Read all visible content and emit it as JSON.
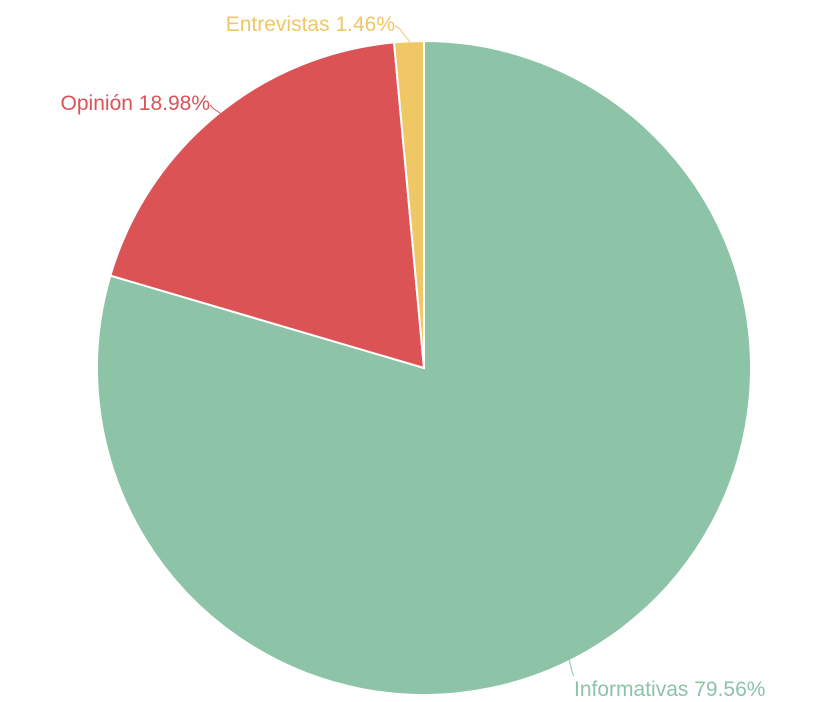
{
  "chart_data": {
    "type": "pie",
    "title": "",
    "slices": [
      {
        "name": "Informativas",
        "value": 79.56,
        "label": "Informativas 79.56%",
        "color": "#8dc3a7"
      },
      {
        "name": "Opinión",
        "value": 18.98,
        "label": "Opinión 18.98%",
        "color": "#dc5356"
      },
      {
        "name": "Entrevistas",
        "value": 1.46,
        "label": "Entrevistas 1.46%",
        "color": "#efc765"
      }
    ],
    "start_angle": "12 o'clock",
    "direction": "clockwise",
    "legend": "none"
  }
}
